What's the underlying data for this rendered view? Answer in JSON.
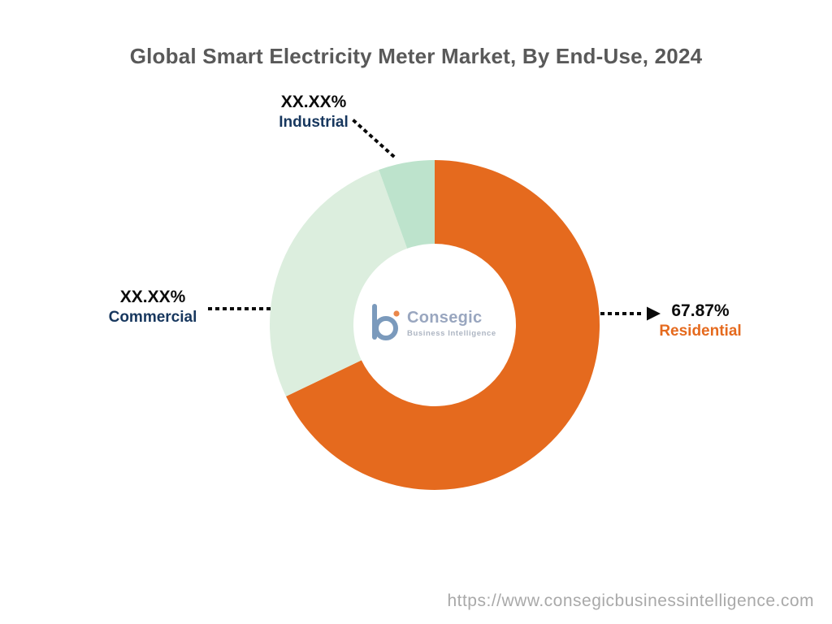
{
  "chart_data": {
    "type": "pie",
    "subtype": "donut",
    "title": "Global Smart Electricity Meter Market, By End-Use, 2024",
    "start_angle_deg": -90,
    "direction": "clockwise",
    "inner_radius_ratio": 0.49,
    "legend": "none",
    "segments": [
      {
        "name": "Residential",
        "label": "67.87%",
        "value": 67.87,
        "color": "#E56A1E"
      },
      {
        "name": "Commercial",
        "label": "XX.XX%",
        "value": 26.63,
        "color": "#DCEEDE"
      },
      {
        "name": "Industrial",
        "label": "XX.XX%",
        "value": 5.5,
        "color": "#BDE3CC"
      }
    ]
  },
  "logo": {
    "brand": "Consegic",
    "tagline": "Business Intelligence",
    "icon": "consegic-b-icon",
    "brand_color": "#8091B0",
    "accent_color": "#E56A1E"
  },
  "footer": {
    "url": "https://www.consegicbusinessintelligence.com"
  },
  "colors": {
    "residential": "#E56A1E",
    "commercial": "#DCEEDE",
    "industrial": "#BDE3CC",
    "label_navy": "#17375E",
    "label_black": "#0B0B0B",
    "title_gray": "#595959",
    "footer_gray": "#A9A9A9"
  }
}
